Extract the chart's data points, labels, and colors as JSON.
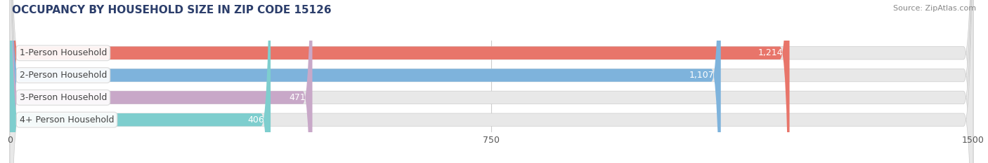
{
  "title": "OCCUPANCY BY HOUSEHOLD SIZE IN ZIP CODE 15126",
  "source": "Source: ZipAtlas.com",
  "categories": [
    "1-Person Household",
    "2-Person Household",
    "3-Person Household",
    "4+ Person Household"
  ],
  "values": [
    1214,
    1107,
    471,
    406
  ],
  "bar_colors": [
    "#E8756A",
    "#7EB3DC",
    "#C8A8C8",
    "#7ECECE"
  ],
  "bar_labels": [
    "1,214",
    "1,107",
    "471",
    "406"
  ],
  "xlim": [
    0,
    1500
  ],
  "xticks": [
    0,
    750,
    1500
  ],
  "xlabel_fontsize": 9,
  "title_fontsize": 11,
  "bg_color": "#FFFFFF",
  "bar_bg_color": "#E8E8E8",
  "label_fontsize": 9,
  "value_fontsize": 9
}
